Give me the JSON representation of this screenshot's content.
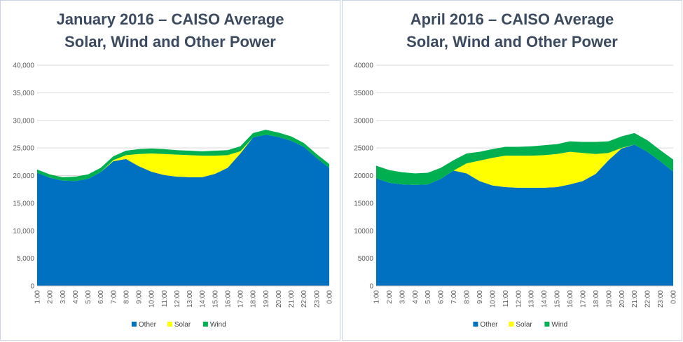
{
  "colors": {
    "other": "#0070c0",
    "solar": "#ffff00",
    "wind": "#00b050",
    "grid": "#d9d9d9",
    "axis_text": "#595959"
  },
  "chart_data": [
    {
      "type": "area",
      "stacked": true,
      "title_line1": "January 2016 – CAISO Average",
      "title_line2": "Solar,  Wind and Other Power",
      "xlabel": "",
      "ylabel": "",
      "ylim": [
        0,
        40000
      ],
      "yticks": [
        0,
        5000,
        10000,
        15000,
        20000,
        25000,
        30000,
        35000,
        40000
      ],
      "ytick_labels": [
        "0",
        "5,000",
        "10,000",
        "15,000",
        "20,000",
        "25,000",
        "30,000",
        "35,000",
        "40,000"
      ],
      "grid": true,
      "legend_position": "bottom",
      "categories": [
        "1:00",
        "2:00",
        "3:00",
        "4:00",
        "5:00",
        "6:00",
        "7:00",
        "8:00",
        "9:00",
        "10:00",
        "11:00",
        "12:00",
        "13:00",
        "14:00",
        "15:00",
        "16:00",
        "17:00",
        "18:00",
        "19:00",
        "20:00",
        "21:00",
        "22:00",
        "23:00",
        "0:00"
      ],
      "series": [
        {
          "name": "Other",
          "values": [
            20500,
            19600,
            19100,
            19000,
            19400,
            20600,
            22600,
            23000,
            21700,
            20700,
            20100,
            19800,
            19700,
            19700,
            20300,
            21400,
            24000,
            26900,
            27400,
            27000,
            26300,
            25200,
            23200,
            21400
          ]
        },
        {
          "name": "Solar",
          "values": [
            0,
            0,
            0,
            0,
            0,
            0,
            200,
            700,
            2200,
            3300,
            3800,
            4000,
            4000,
            3900,
            3300,
            2300,
            400,
            0,
            0,
            0,
            0,
            0,
            0,
            0
          ]
        },
        {
          "name": "Wind",
          "values": [
            600,
            600,
            600,
            800,
            800,
            800,
            700,
            800,
            900,
            900,
            900,
            800,
            800,
            800,
            900,
            900,
            900,
            800,
            900,
            800,
            800,
            700,
            700,
            700
          ]
        }
      ]
    },
    {
      "type": "area",
      "stacked": true,
      "title_line1": "April 2016 – CAISO Average",
      "title_line2": "Solar,  Wind and Other Power",
      "xlabel": "",
      "ylabel": "",
      "ylim": [
        0,
        40000
      ],
      "yticks": [
        0,
        5000,
        10000,
        15000,
        20000,
        25000,
        30000,
        35000,
        40000
      ],
      "ytick_labels": [
        "0",
        "5000",
        "10000",
        "15000",
        "20000",
        "25000",
        "30000",
        "35000",
        "40000"
      ],
      "grid": true,
      "legend_position": "bottom",
      "categories": [
        "1:00",
        "2:00",
        "3:00",
        "4:00",
        "5:00",
        "6:00",
        "7:00",
        "8:00",
        "9:00",
        "10:00",
        "11:00",
        "12:00",
        "13:00",
        "14:00",
        "15:00",
        "16:00",
        "17:00",
        "18:00",
        "19:00",
        "20:00",
        "21:00",
        "22:00",
        "23:00",
        "0:00"
      ],
      "series": [
        {
          "name": "Other",
          "values": [
            19500,
            18700,
            18400,
            18300,
            18400,
            19400,
            20900,
            20400,
            19000,
            18200,
            17900,
            17800,
            17800,
            17800,
            17900,
            18400,
            19000,
            20300,
            22800,
            24900,
            25600,
            24300,
            22600,
            20700
          ]
        },
        {
          "name": "Solar",
          "values": [
            0,
            0,
            0,
            0,
            0,
            0,
            0,
            1800,
            3700,
            5000,
            5700,
            5800,
            5800,
            5900,
            6000,
            5900,
            5100,
            3600,
            1300,
            100,
            0,
            0,
            0,
            0
          ]
        },
        {
          "name": "Wind",
          "values": [
            2300,
            2300,
            2200,
            2100,
            2100,
            2000,
            1900,
            1800,
            1600,
            1600,
            1600,
            1600,
            1700,
            1800,
            1800,
            1900,
            2000,
            2200,
            2100,
            2100,
            2100,
            2100,
            2000,
            2200
          ]
        }
      ]
    }
  ]
}
